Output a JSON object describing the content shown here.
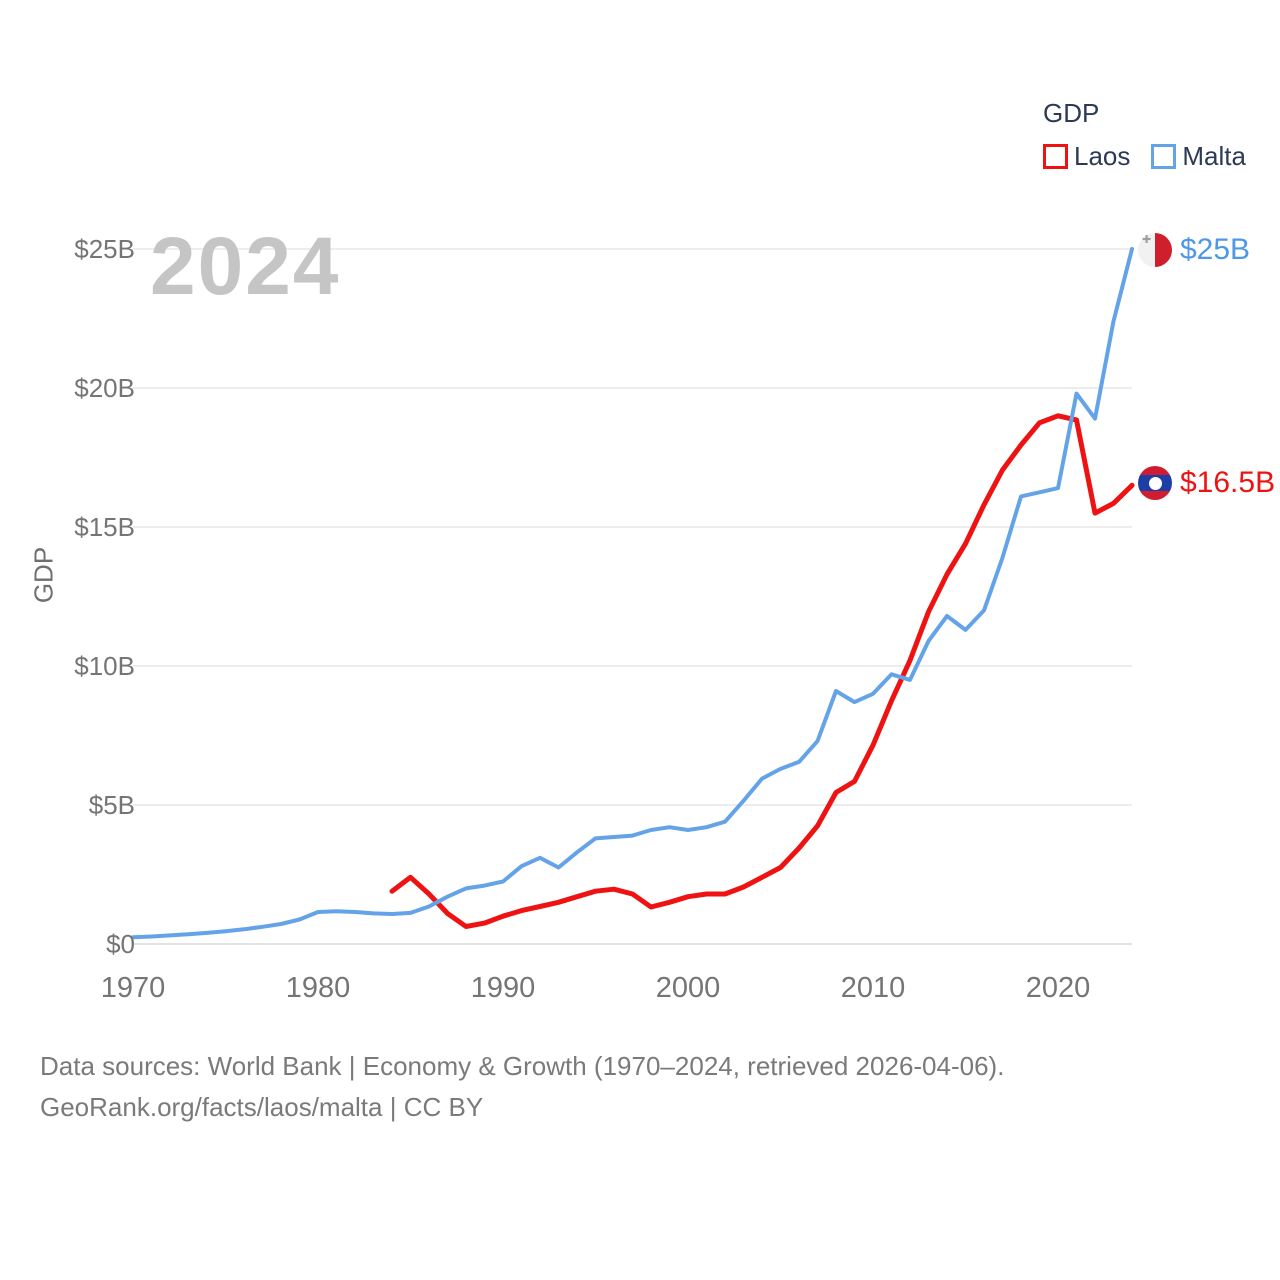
{
  "legend": {
    "title": "GDP",
    "items": [
      {
        "label": "Laos",
        "color": "#ee1312"
      },
      {
        "label": "Malta",
        "color": "#64a3e8"
      }
    ]
  },
  "watermark": "2024",
  "y_axis": {
    "title": "GDP"
  },
  "end_labels": {
    "malta": {
      "text": "$25B",
      "color": "#4f97e8",
      "flag": "malta"
    },
    "laos": {
      "text": "$16.5B",
      "color": "#ee1312",
      "flag": "laos"
    }
  },
  "footer": {
    "line1": "Data sources: World Bank | Economy & Growth (1970–2024, retrieved 2026-04-06).",
    "line2": "GeoRank.org/facts/laos/malta | CC BY"
  },
  "chart_data": {
    "type": "line",
    "title": "GDP",
    "xlabel": "",
    "ylabel": "GDP",
    "xlim": [
      1970,
      2024
    ],
    "ylim": [
      0,
      25
    ],
    "grid": "horizontal",
    "legend_position": "top-right",
    "units": "billions USD",
    "x_ticks": [
      {
        "v": 1970,
        "label": "1970"
      },
      {
        "v": 1980,
        "label": "1980"
      },
      {
        "v": 1990,
        "label": "1990"
      },
      {
        "v": 2000,
        "label": "2000"
      },
      {
        "v": 2010,
        "label": "2010"
      },
      {
        "v": 2020,
        "label": "2020"
      }
    ],
    "y_ticks": [
      {
        "v": 0,
        "label": "$0"
      },
      {
        "v": 5,
        "label": "$5B"
      },
      {
        "v": 10,
        "label": "$10B"
      },
      {
        "v": 15,
        "label": "$15B"
      },
      {
        "v": 20,
        "label": "$20B"
      },
      {
        "v": 25,
        "label": "$25B"
      }
    ],
    "series": [
      {
        "name": "Laos",
        "color": "#ee1312",
        "stroke_width": 5,
        "start_year": 1984,
        "values": [
          1.9,
          2.4,
          1.8,
          1.1,
          0.63,
          0.75,
          1.0,
          1.2,
          1.35,
          1.5,
          1.7,
          1.9,
          1.97,
          1.8,
          1.33,
          1.5,
          1.7,
          1.8,
          1.8,
          2.05,
          2.4,
          2.75,
          3.45,
          4.25,
          5.45,
          5.85,
          7.15,
          8.75,
          10.2,
          11.95,
          13.3,
          14.4,
          15.8,
          17.05,
          17.95,
          18.75,
          19.0,
          18.85,
          15.5,
          15.85,
          16.5
        ]
      },
      {
        "name": "Malta",
        "color": "#64a3e8",
        "stroke_width": 4,
        "start_year": 1970,
        "values": [
          0.24,
          0.27,
          0.31,
          0.35,
          0.4,
          0.46,
          0.53,
          0.62,
          0.72,
          0.88,
          1.15,
          1.18,
          1.15,
          1.1,
          1.08,
          1.12,
          1.35,
          1.7,
          2.0,
          2.1,
          2.25,
          2.8,
          3.1,
          2.75,
          3.3,
          3.8,
          3.85,
          3.9,
          4.1,
          4.2,
          4.1,
          4.2,
          4.4,
          5.15,
          5.95,
          6.3,
          6.55,
          7.3,
          9.1,
          8.7,
          9.0,
          9.7,
          9.5,
          10.9,
          11.8,
          11.3,
          12.0,
          13.9,
          16.1,
          16.25,
          16.4,
          19.8,
          18.9,
          22.4,
          25.0
        ]
      }
    ],
    "end_annotations": [
      {
        "series": "Malta",
        "year": 2024,
        "value": 25.0,
        "label": "$25B"
      },
      {
        "series": "Laos",
        "year": 2024,
        "value": 16.5,
        "label": "$16.5B"
      }
    ]
  }
}
